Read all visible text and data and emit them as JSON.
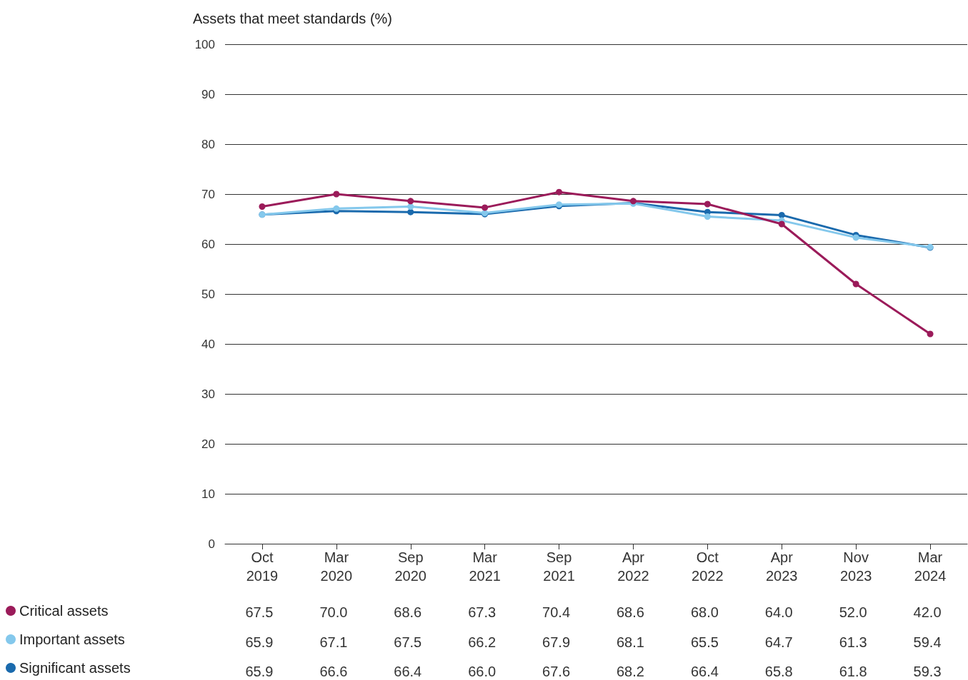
{
  "chart_data": {
    "type": "line",
    "ylabel": "Assets that meet standards (%)",
    "categories": [
      "Oct 2019",
      "Mar 2020",
      "Sep 2020",
      "Mar 2021",
      "Sep 2021",
      "Apr 2022",
      "Oct 2022",
      "Apr 2023",
      "Nov 2023",
      "Mar 2024"
    ],
    "series": [
      {
        "name": "Critical assets",
        "color": "#9b1b5a",
        "values": [
          67.5,
          70.0,
          68.6,
          67.3,
          70.4,
          68.6,
          68.0,
          64.0,
          52.0,
          42.0
        ],
        "value_labels": [
          "67.5",
          "70.0",
          "68.6",
          "67.3",
          "70.4",
          "68.6",
          "68.0",
          "64.0",
          "52.0",
          "42.0"
        ]
      },
      {
        "name": "Important assets",
        "color": "#84c8ec",
        "values": [
          65.9,
          67.1,
          67.5,
          66.2,
          67.9,
          68.1,
          65.5,
          64.7,
          61.3,
          59.4
        ],
        "value_labels": [
          "65.9",
          "67.1",
          "67.5",
          "66.2",
          "67.9",
          "68.1",
          "65.5",
          "64.7",
          "61.3",
          "59.4"
        ]
      },
      {
        "name": "Significant assets",
        "color": "#1a6aad",
        "values": [
          65.9,
          66.6,
          66.4,
          66.0,
          67.6,
          68.2,
          66.4,
          65.8,
          61.8,
          59.3
        ],
        "value_labels": [
          "65.9",
          "66.6",
          "66.4",
          "66.0",
          "67.6",
          "68.2",
          "66.4",
          "65.8",
          "61.8",
          "59.3"
        ]
      }
    ],
    "ylim": [
      0,
      100
    ],
    "yticks": [
      0,
      10,
      20,
      30,
      40,
      50,
      60,
      70,
      80,
      90,
      100
    ],
    "grid": "y",
    "legend": "bottom left",
    "marker": "circle",
    "line_style": "solid"
  }
}
